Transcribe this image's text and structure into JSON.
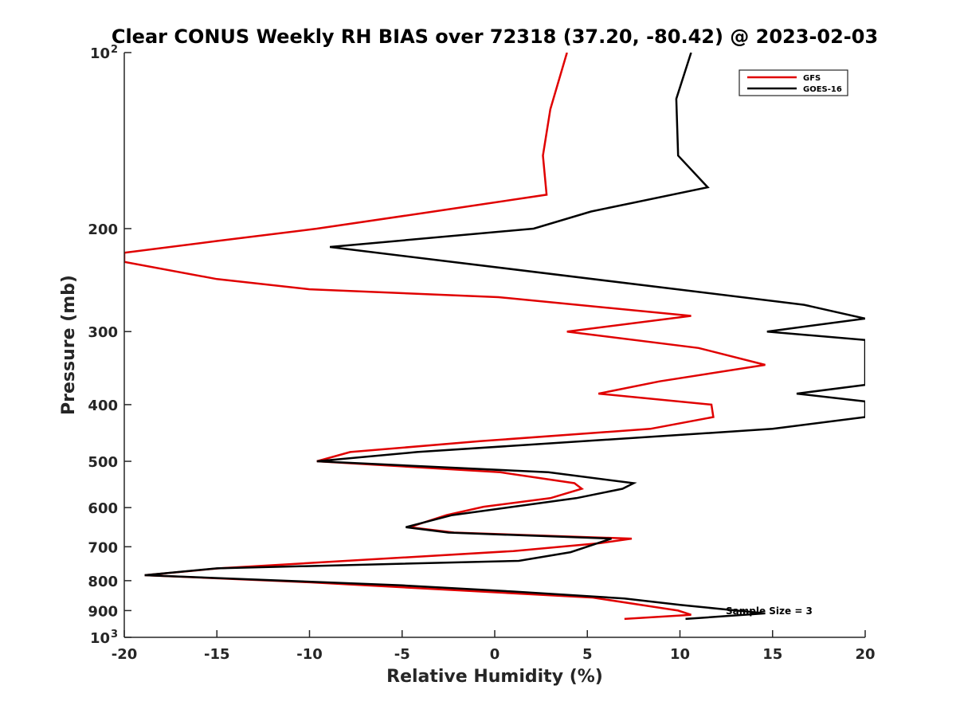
{
  "chart_data": {
    "type": "line",
    "title": "Clear CONUS Weekly RH BIAS over 72318 (37.20, -80.42) @ 2023-02-03",
    "xlabel": "Relative Humidity (%)",
    "ylabel": "Pressure (mb)",
    "xlim": [
      -20,
      20
    ],
    "ylim": [
      100,
      1000
    ],
    "y_scale": "log",
    "y_reversed": true,
    "grid": false,
    "legend_position": "top-right",
    "x_ticks": [
      -20,
      -15,
      -10,
      -5,
      0,
      5,
      10,
      15,
      20
    ],
    "y_ticks": [
      {
        "value": 100,
        "label": "10",
        "sup": "2"
      },
      {
        "value": 200,
        "label": "200",
        "sup": ""
      },
      {
        "value": 300,
        "label": "300",
        "sup": ""
      },
      {
        "value": 400,
        "label": "400",
        "sup": ""
      },
      {
        "value": 500,
        "label": "500",
        "sup": ""
      },
      {
        "value": 600,
        "label": "600",
        "sup": ""
      },
      {
        "value": 700,
        "label": "700",
        "sup": ""
      },
      {
        "value": 800,
        "label": "800",
        "sup": ""
      },
      {
        "value": 900,
        "label": "900",
        "sup": ""
      },
      {
        "value": 1000,
        "label": "10",
        "sup": "3"
      }
    ],
    "annotation": "Sample Size = 3",
    "series": [
      {
        "name": "GFS",
        "color": "#e00000",
        "points": [
          [
            3.9,
            100
          ],
          [
            3.0,
            125
          ],
          [
            2.6,
            150
          ],
          [
            2.8,
            175
          ],
          [
            -3.3,
            187
          ],
          [
            -9.6,
            200
          ],
          [
            -15.0,
            210
          ],
          [
            -20.0,
            220
          ],
          [
            -20.0,
            228
          ],
          [
            -15.0,
            244
          ],
          [
            -10.0,
            254
          ],
          [
            0.2,
            262
          ],
          [
            10.6,
            282
          ],
          [
            3.9,
            300
          ],
          [
            11.0,
            320
          ],
          [
            14.6,
            342
          ],
          [
            8.9,
            365
          ],
          [
            5.6,
            383
          ],
          [
            11.7,
            400
          ],
          [
            11.8,
            420
          ],
          [
            8.4,
            440
          ],
          [
            -0.8,
            462
          ],
          [
            -7.8,
            482
          ],
          [
            -9.6,
            500
          ],
          [
            0.3,
            522
          ],
          [
            4.3,
            545
          ],
          [
            4.7,
            557
          ],
          [
            3.0,
            578
          ],
          [
            -0.6,
            598
          ],
          [
            -2.6,
            618
          ],
          [
            -4.6,
            648
          ],
          [
            -2.2,
            662
          ],
          [
            7.4,
            678
          ],
          [
            5.7,
            690
          ],
          [
            1.0,
            712
          ],
          [
            -14.9,
            762
          ],
          [
            -18.9,
            783
          ],
          [
            -10.0,
            805
          ],
          [
            5.3,
            855
          ],
          [
            9.9,
            900
          ],
          [
            10.6,
            915
          ],
          [
            7.0,
            930
          ]
        ]
      },
      {
        "name": "GOES-16",
        "color": "#000000",
        "points": [
          [
            10.6,
            100
          ],
          [
            9.8,
            120
          ],
          [
            9.9,
            150
          ],
          [
            11.5,
            170
          ],
          [
            5.2,
            187
          ],
          [
            2.1,
            200
          ],
          [
            -8.9,
            215
          ],
          [
            16.7,
            270
          ],
          [
            20.0,
            285
          ],
          [
            14.7,
            300
          ],
          [
            20.0,
            310
          ],
          [
            20.0,
            370
          ],
          [
            16.3,
            383
          ],
          [
            20.0,
            395
          ],
          [
            20.0,
            420
          ],
          [
            15.0,
            440
          ],
          [
            -4.2,
            482
          ],
          [
            -9.6,
            500
          ],
          [
            2.9,
            522
          ],
          [
            7.5,
            545
          ],
          [
            6.9,
            557
          ],
          [
            4.4,
            578
          ],
          [
            -2.3,
            618
          ],
          [
            -4.8,
            648
          ],
          [
            -2.5,
            662
          ],
          [
            6.3,
            678
          ],
          [
            4.1,
            715
          ],
          [
            1.3,
            740
          ],
          [
            -15.0,
            762
          ],
          [
            -18.9,
            783
          ],
          [
            -5.0,
            815
          ],
          [
            1.0,
            835
          ],
          [
            7.0,
            858
          ],
          [
            10.0,
            880
          ],
          [
            14.6,
            910
          ],
          [
            10.3,
            930
          ]
        ]
      }
    ]
  }
}
